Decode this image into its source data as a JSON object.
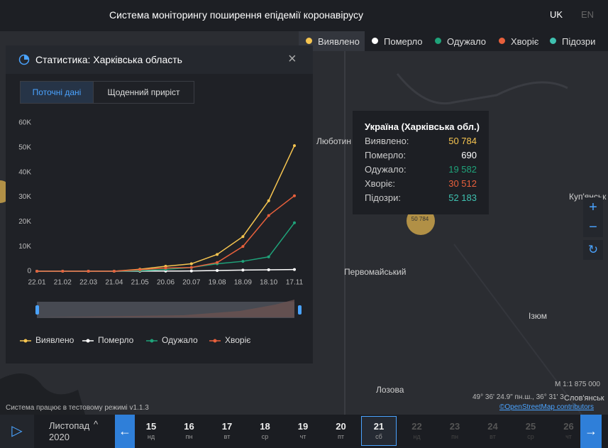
{
  "header": {
    "title": "Система моніторингу поширення епідемії коронавірусу",
    "languages": [
      "UK",
      "EN"
    ]
  },
  "legend": {
    "items": [
      {
        "name": "Виявлено",
        "color": "#f6c550"
      },
      {
        "name": "Померло",
        "color": "#ffffff"
      },
      {
        "name": "Одужало",
        "color": "#1fa37a"
      },
      {
        "name": "Хворіє",
        "color": "#e8603c"
      },
      {
        "name": "Підозри",
        "color": "#3fc1b0"
      }
    ]
  },
  "panel": {
    "title": "Статистика: Харківська область",
    "tabs": [
      "Поточні дані",
      "Щоденний приріст"
    ]
  },
  "chart_data": {
    "type": "line",
    "categories": [
      "22.01",
      "21.02",
      "22.03",
      "21.04",
      "21.05",
      "20.06",
      "20.07",
      "19.08",
      "18.09",
      "18.10",
      "17.11"
    ],
    "series": [
      {
        "name": "Виявлено",
        "color": "#f6c550",
        "values": [
          0,
          0,
          0,
          0,
          800,
          2000,
          3000,
          6800,
          14000,
          28500,
          50784
        ]
      },
      {
        "name": "Померло",
        "color": "#ffffff",
        "values": [
          0,
          0,
          0,
          0,
          20,
          60,
          100,
          300,
          450,
          580,
          690
        ]
      },
      {
        "name": "Одужало",
        "color": "#1fa37a",
        "values": [
          0,
          0,
          0,
          0,
          200,
          700,
          1500,
          3000,
          4000,
          5800,
          19582
        ]
      },
      {
        "name": "Хворіє",
        "color": "#e8603c",
        "values": [
          0,
          0,
          0,
          0,
          600,
          1300,
          1500,
          3500,
          10000,
          22500,
          30512
        ]
      }
    ],
    "ylim": [
      0,
      60000
    ],
    "yticks": [
      0,
      {
        "value": 10000,
        "label": "10K"
      },
      {
        "value": 20000,
        "label": "20K"
      },
      {
        "value": 30000,
        "label": "30K"
      },
      {
        "value": 40000,
        "label": "40K"
      },
      {
        "value": 50000,
        "label": "50K"
      },
      {
        "value": 60000,
        "label": "60K"
      }
    ],
    "grid": false
  },
  "tooltip": {
    "title": "Україна (Харківська обл.)",
    "rows": [
      {
        "label": "Виявлено:",
        "value": "50 784",
        "color": "#f6c550"
      },
      {
        "label": "Померло:",
        "value": "690",
        "color": "#ffffff"
      },
      {
        "label": "Одужало:",
        "value": "19 582",
        "color": "#1fa37a"
      },
      {
        "label": "Хворіє:",
        "value": "30 512",
        "color": "#e8603c"
      },
      {
        "label": "Підозри:",
        "value": "52 183",
        "color": "#3fc1b0"
      }
    ]
  },
  "map": {
    "places": [
      "Люботин",
      "Куп'янськ",
      "Первомайський",
      "Ізюм",
      "Лозова",
      "Слов'янськ"
    ],
    "scale": "М 1:1 875 000",
    "coords": "49° 36' 24.9\" пн.ш., 36° 31' 3",
    "attribution": "©OpenStreetMap contributors",
    "status": "Система працює в тестовому режимі v1.1.3"
  },
  "timeline": {
    "month": "Листопад",
    "year": "2020",
    "days": [
      {
        "day": "15",
        "weekday": "нд"
      },
      {
        "day": "16",
        "weekday": "пн"
      },
      {
        "day": "17",
        "weekday": "вт"
      },
      {
        "day": "18",
        "weekday": "ср"
      },
      {
        "day": "19",
        "weekday": "чт"
      },
      {
        "day": "20",
        "weekday": "пт"
      },
      {
        "day": "21",
        "weekday": "сб"
      },
      {
        "day": "22",
        "weekday": "нд"
      },
      {
        "day": "23",
        "weekday": "пн"
      },
      {
        "day": "24",
        "weekday": "вт"
      },
      {
        "day": "25",
        "weekday": "ср"
      },
      {
        "day": "26",
        "weekday": "чт"
      }
    ]
  }
}
